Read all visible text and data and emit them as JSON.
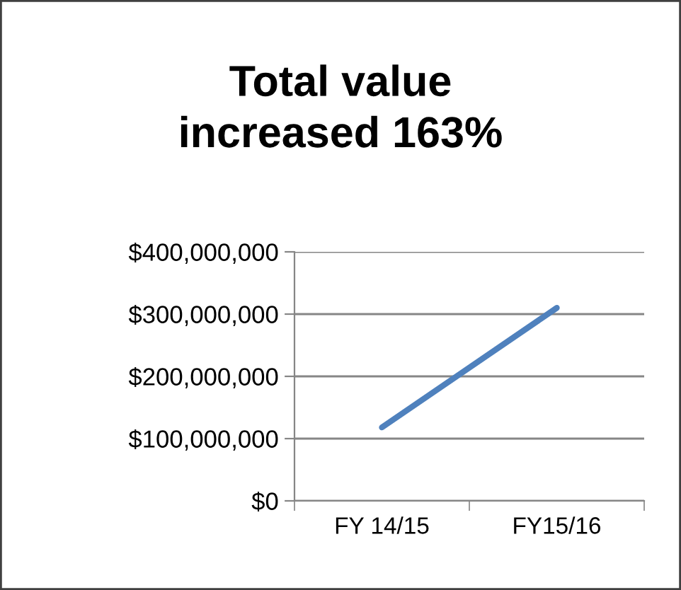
{
  "chart_data": {
    "type": "line",
    "title": "Total value\nincreased 163%",
    "categories": [
      "FY 14/15",
      "FY15/16"
    ],
    "series": [
      {
        "color": "#4f81bd",
        "values": [
          118000000,
          310000000
        ]
      }
    ],
    "ylim": [
      0,
      400000000
    ],
    "yticks": [
      {
        "value": 0,
        "label": "$0"
      },
      {
        "value": 100000000,
        "label": "$100,000,000"
      },
      {
        "value": 200000000,
        "label": "$200,000,000"
      },
      {
        "value": 300000000,
        "label": "$300,000,000"
      },
      {
        "value": 400000000,
        "label": "$400,000,000"
      }
    ],
    "grid": "y",
    "legend": false,
    "marker": "none",
    "line_style": "solid"
  }
}
